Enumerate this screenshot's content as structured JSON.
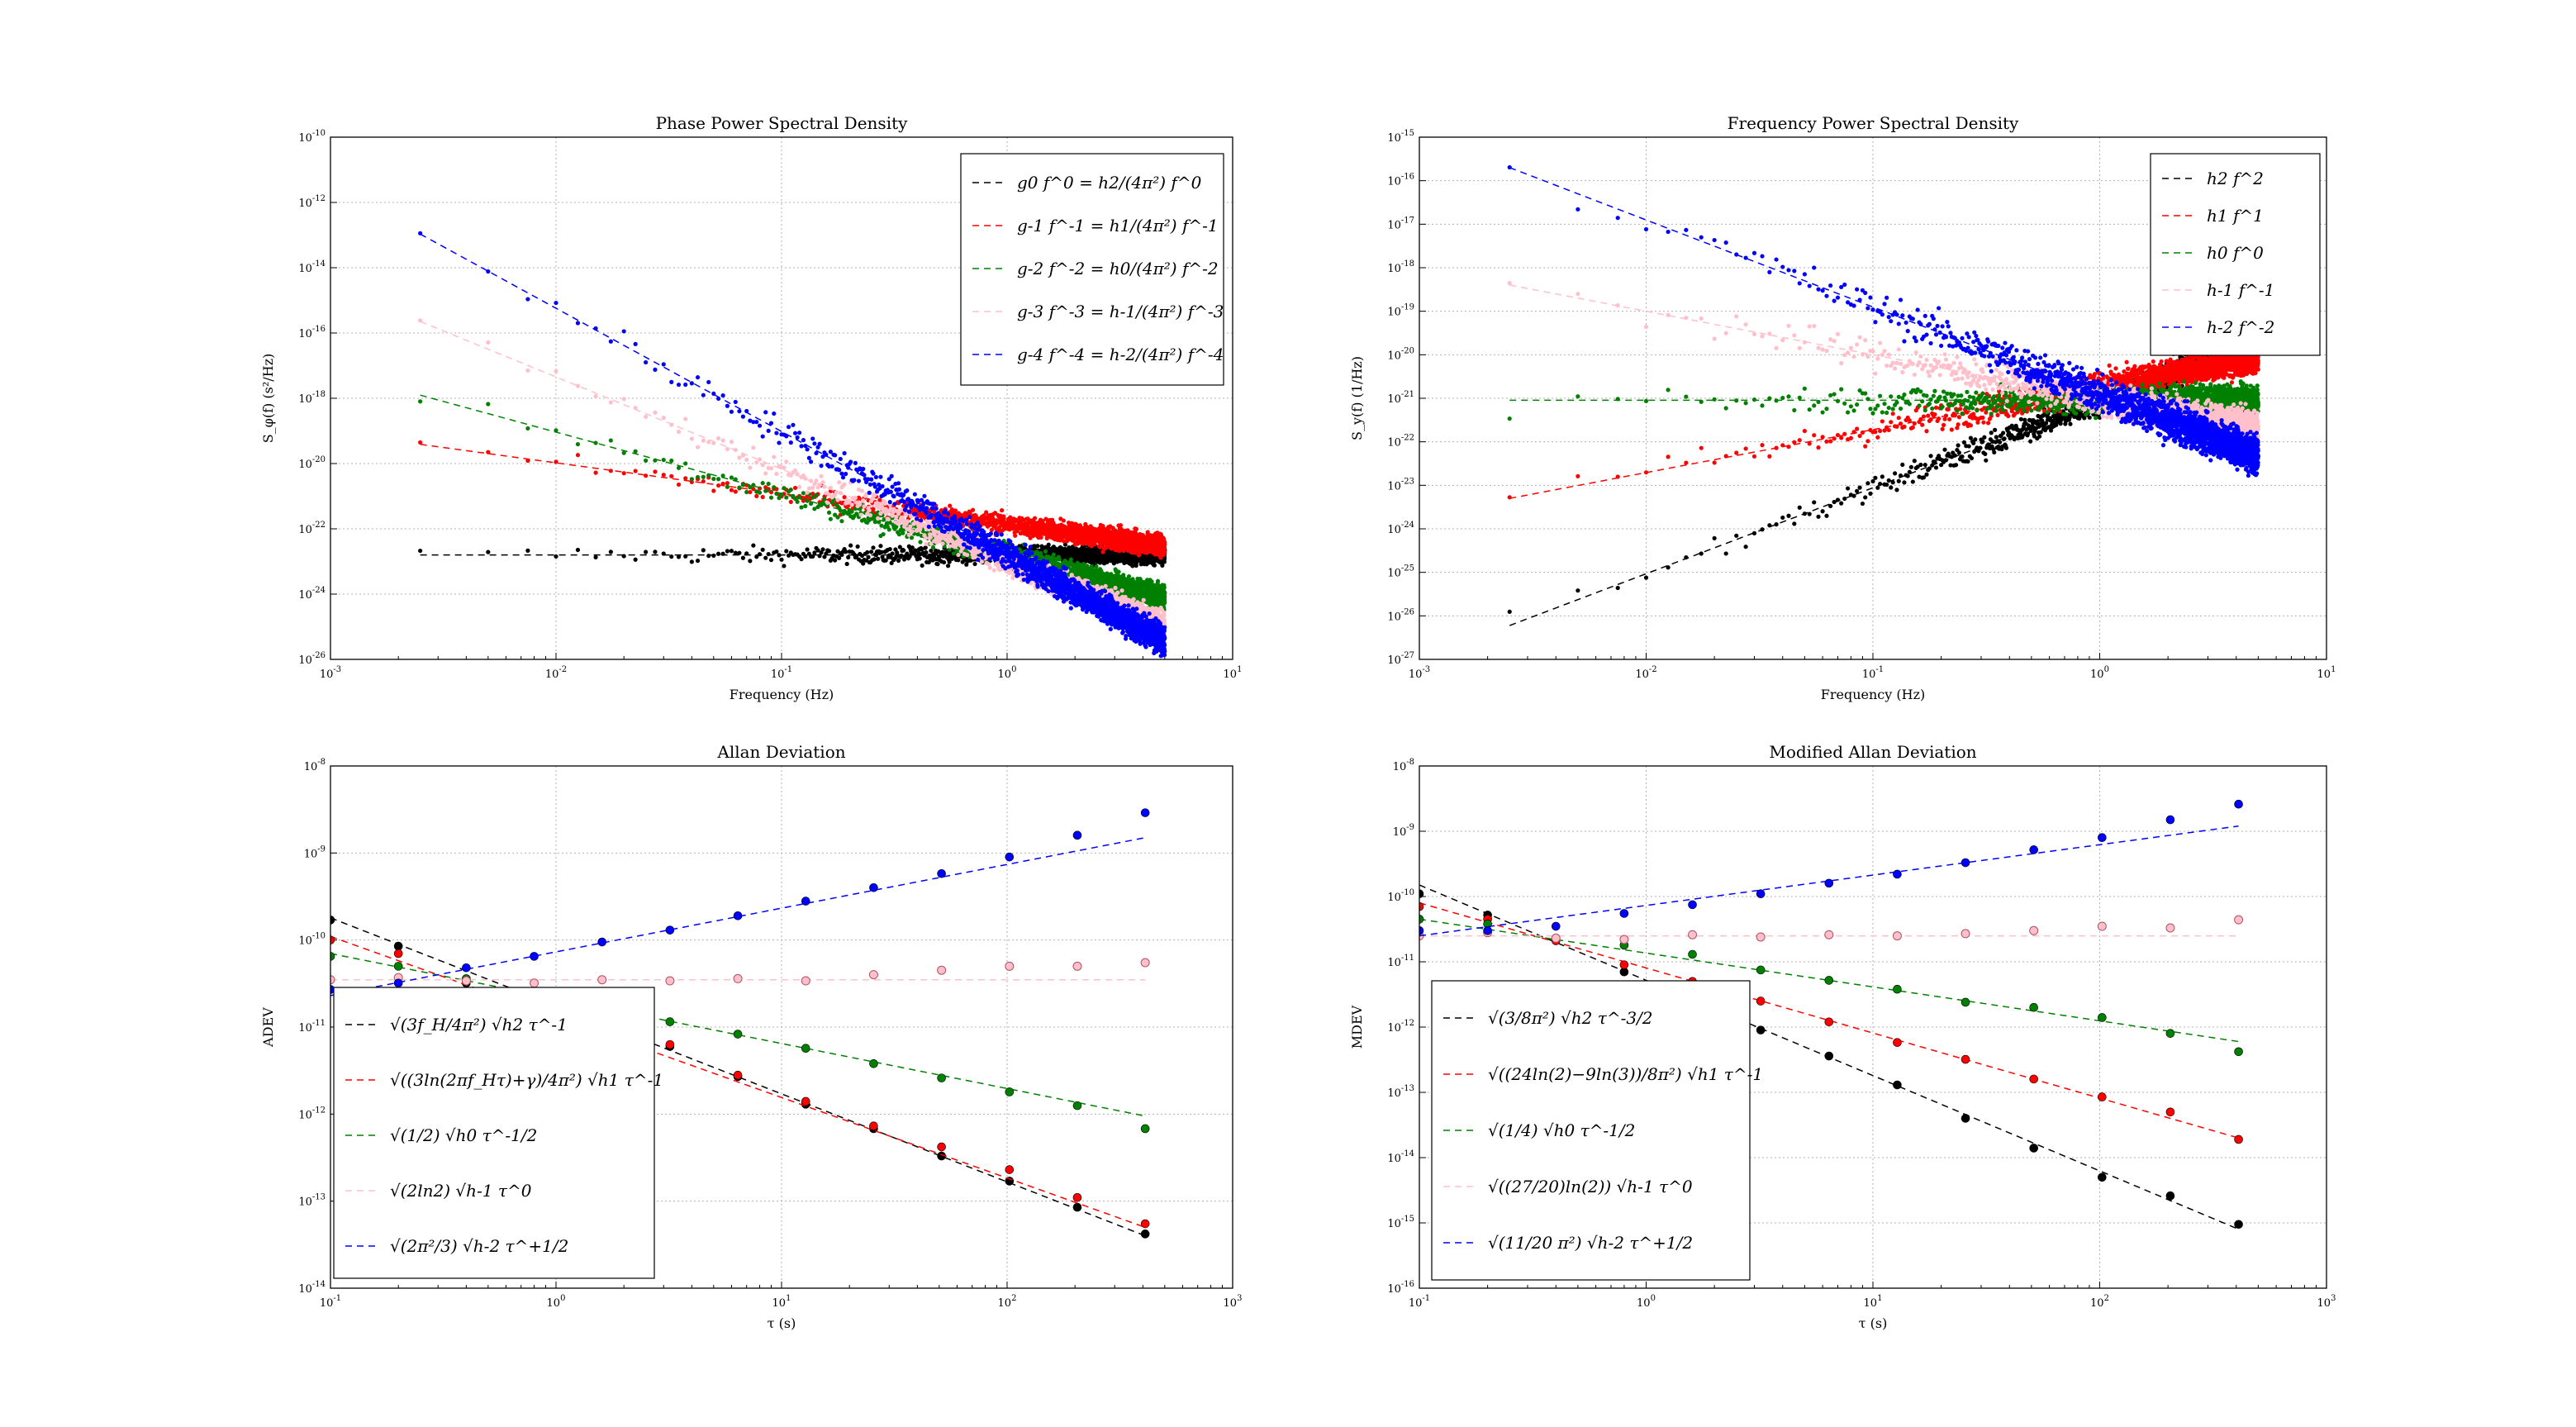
{
  "chart_data": [
    {
      "type": "scatter",
      "id": "phase",
      "title": "Phase Power Spectral Density",
      "xlabel": "Frequency (Hz)",
      "ylabel": "S_φ(f) (s²/Hz)",
      "xscale": "log",
      "yscale": "log",
      "xlim": [
        0.001,
        10
      ],
      "ylim": [
        1e-26,
        1e-09
      ],
      "x_ticks": [
        "10^-3",
        "10^-2",
        "10^-1",
        "10^0",
        "10^1"
      ],
      "y_ticks": [
        "10^-26",
        "10^-24",
        "10^-22",
        "10^-20",
        "10^-18",
        "10^-16",
        "10^-14",
        "10^-12",
        "10^-10"
      ],
      "grid": true,
      "legend_position": "top-right",
      "series": [
        {
          "name": "g0 f^0 = h2/(4π²) f^0",
          "color": "#000000",
          "fit": {
            "x": [
              0.0025,
              5
            ],
            "y": [
              2.5e-23,
              2.5e-23
            ]
          },
          "noise_decades": 0.3
        },
        {
          "name": "g-1 f^-1 = h1/(4π²) f^-1",
          "color": "#ff0000",
          "fit": {
            "x": [
              0.0025,
              5
            ],
            "y": [
              1e-19,
              5e-23
            ]
          },
          "noise_decades": 0.35
        },
        {
          "name": "g-2 f^-2 = h0/(4π²) f^-2",
          "color": "#008000",
          "fit": {
            "x": [
              0.0025,
              5
            ],
            "y": [
              4e-18,
              1e-24
            ]
          },
          "noise_decades": 0.4
        },
        {
          "name": "g-3 f^-3 = h-1/(4π²) f^-3",
          "color": "#ffc0cb",
          "fit": {
            "x": [
              0.0025,
              5
            ],
            "y": [
              1e-15,
              1.25e-25
            ]
          },
          "noise_decades": 0.45
        },
        {
          "name": "g-4 f^-4 = h-2/(4π²) f^-4",
          "color": "#0000ff",
          "fit": {
            "x": [
              0.0025,
              5
            ],
            "y": [
              7e-13,
              4e-26
            ]
          },
          "noise_decades": 0.5
        }
      ]
    },
    {
      "type": "scatter",
      "id": "freq",
      "title": "Frequency Power Spectral Density",
      "xlabel": "Frequency (Hz)",
      "ylabel": "S_y(f) (1/Hz)",
      "xscale": "log",
      "yscale": "log",
      "xlim": [
        0.001,
        10
      ],
      "ylim": [
        1e-27,
        1e-15
      ],
      "x_ticks": [
        "10^-3",
        "10^-2",
        "10^-1",
        "10^0",
        "10^1"
      ],
      "y_ticks": [
        "10^-27",
        "10^-26",
        "10^-25",
        "10^-24",
        "10^-23",
        "10^-22",
        "10^-21",
        "10^-20",
        "10^-19",
        "10^-18",
        "10^-17",
        "10^-16",
        "10^-15"
      ],
      "grid": true,
      "legend_position": "top-right",
      "series": [
        {
          "name": "h2 f^2",
          "color": "#000000",
          "fit": {
            "x": [
              0.0025,
              5
            ],
            "y": [
              6e-27,
              2e-20
            ]
          },
          "noise_decades": 0.3
        },
        {
          "name": "h1 f^1",
          "color": "#ff0000",
          "fit": {
            "x": [
              0.0025,
              5
            ],
            "y": [
              5e-24,
              9e-21
            ]
          },
          "noise_decades": 0.35
        },
        {
          "name": "h0 f^0",
          "color": "#008000",
          "fit": {
            "x": [
              0.0025,
              5
            ],
            "y": [
              9e-22,
              9e-22
            ]
          },
          "noise_decades": 0.35
        },
        {
          "name": "h-1 f^-1",
          "color": "#ffc0cb",
          "fit": {
            "x": [
              0.0025,
              5
            ],
            "y": [
              4e-19,
              2e-22
            ]
          },
          "noise_decades": 0.4
        },
        {
          "name": "h-2 f^-2",
          "color": "#0000ff",
          "fit": {
            "x": [
              0.0025,
              5
            ],
            "y": [
              2e-16,
              5e-23
            ]
          },
          "noise_decades": 0.45
        }
      ]
    },
    {
      "type": "line",
      "id": "adev",
      "title": "Allan Deviation",
      "xlabel": "τ (s)",
      "ylabel": "ADEV",
      "xscale": "log",
      "yscale": "log",
      "xlim": [
        0.1,
        1000
      ],
      "ylim": [
        1e-14,
        1e-08
      ],
      "x_ticks": [
        "10^-1",
        "10^0",
        "10^1",
        "10^2",
        "10^3"
      ],
      "y_ticks": [
        "10^-14",
        "10^-13",
        "10^-12",
        "10^-11",
        "10^-10",
        "10^-9",
        "10^-8"
      ],
      "grid": true,
      "legend_position": "bottom-left",
      "tau": [
        0.1,
        0.2,
        0.4,
        0.8,
        1.6,
        3.2,
        6.4,
        12.8,
        25.6,
        51.2,
        102.4,
        204.8,
        409.6
      ],
      "series": [
        {
          "name": "√(3f_H/4π²) √h2 τ^-1",
          "color": "#000000",
          "fit": [
            1.8e-10,
            4e-14
          ],
          "points": [
            1.7e-10,
            8.5e-11,
            3.2e-11,
            2.2e-11,
            1.3e-11,
            6e-12,
            2.7e-12,
            1.3e-12,
            6.8e-13,
            3.3e-13,
            1.7e-13,
            8.5e-14,
            4.2e-14
          ],
          "hollow": false
        },
        {
          "name": "√((3ln(2πf_Hτ)+γ)/4π²) √h1 τ^-1",
          "color": "#ff0000",
          "fit": [
            1.1e-10,
            5e-14
          ],
          "points": [
            1e-10,
            7e-11,
            3.5e-11,
            2.4e-11,
            1.4e-11,
            6.3e-12,
            2.8e-12,
            1.4e-12,
            7.3e-13,
            4.2e-13,
            2.3e-13,
            1.1e-13,
            5.5e-14
          ],
          "hollow": false
        },
        {
          "name": "√(1/2) √h0 τ^-1/2",
          "color": "#008000",
          "fit": [
            7e-11,
            9.5e-13
          ],
          "points": [
            6.5e-11,
            5e-11,
            3.6e-11,
            2.6e-11,
            1.7e-11,
            1.15e-11,
            8.3e-12,
            5.7e-12,
            3.8e-12,
            2.6e-12,
            1.8e-12,
            1.25e-12,
            6.8e-13
          ],
          "hollow": false
        },
        {
          "name": "√(2ln2) √h-1 τ^0",
          "color": "#ffc0cb",
          "fit": [
            3.5e-11,
            3.5e-11
          ],
          "points": [
            3.5e-11,
            3.7e-11,
            3.4e-11,
            3.2e-11,
            3.5e-11,
            3.4e-11,
            3.6e-11,
            3.4e-11,
            4e-11,
            4.5e-11,
            5e-11,
            5e-11,
            5.5e-11
          ],
          "hollow": true
        },
        {
          "name": "√(2π²/3) √h-2 τ^+1/2",
          "color": "#0000ff",
          "fit": [
            2.3e-11,
            1.5e-09
          ],
          "points": [
            2.7e-11,
            3.2e-11,
            4.8e-11,
            6.5e-11,
            9.5e-11,
            1.3e-10,
            1.9e-10,
            2.8e-10,
            4e-10,
            5.8e-10,
            9e-10,
            1.6e-09,
            2.9e-09
          ],
          "hollow": false
        }
      ]
    },
    {
      "type": "line",
      "id": "mdev",
      "title": "Modified Allan Deviation",
      "xlabel": "τ (s)",
      "ylabel": "MDEV",
      "xscale": "log",
      "yscale": "log",
      "xlim": [
        0.1,
        1000
      ],
      "ylim": [
        1e-16,
        1e-08
      ],
      "x_ticks": [
        "10^-1",
        "10^0",
        "10^1",
        "10^2",
        "10^3"
      ],
      "y_ticks": [
        "10^-16",
        "10^-15",
        "10^-14",
        "10^-13",
        "10^-12",
        "10^-11",
        "10^-10",
        "10^-9",
        "10^-8"
      ],
      "grid": true,
      "legend_position": "bottom-left",
      "tau": [
        0.1,
        0.2,
        0.4,
        0.8,
        1.6,
        3.2,
        6.4,
        12.8,
        25.6,
        51.2,
        102.4,
        204.8,
        409.6
      ],
      "series": [
        {
          "name": "√(3/8π²) √h2 τ^-3/2",
          "color": "#000000",
          "fit": [
            1.5e-10,
            8e-16
          ],
          "points": [
            1.1e-10,
            5.2e-11,
            2.3e-11,
            7e-12,
            2.3e-12,
            9e-13,
            3.6e-13,
            1.3e-13,
            4e-14,
            1.4e-14,
            5e-15,
            2.6e-15,
            9.5e-16
          ],
          "hollow": false
        },
        {
          "name": "√((24ln(2)−9ln(3))/8π²) √h1 τ^-1",
          "color": "#ff0000",
          "fit": [
            8e-11,
            2e-14
          ],
          "points": [
            7e-11,
            4.5e-11,
            2.1e-11,
            9e-12,
            5e-12,
            2.5e-12,
            1.2e-12,
            5.8e-13,
            3.2e-13,
            1.6e-13,
            8.5e-14,
            5e-14,
            1.9e-14
          ],
          "hollow": false
        },
        {
          "name": "√(1/4) √h0 τ^-1/2",
          "color": "#008000",
          "fit": [
            4.5e-11,
            6e-13
          ],
          "points": [
            4.5e-11,
            3.8e-11,
            2.3e-11,
            1.8e-11,
            1.3e-11,
            7.5e-12,
            5.2e-12,
            3.8e-12,
            2.4e-12,
            2e-12,
            1.4e-12,
            8e-13,
            4.2e-13
          ],
          "hollow": false
        },
        {
          "name": "√((27/20)ln(2)) √h-1 τ^0",
          "color": "#ffc0cb",
          "fit": [
            2.5e-11,
            2.5e-11
          ],
          "points": [
            2.5e-11,
            2.8e-11,
            2.3e-11,
            2.2e-11,
            2.6e-11,
            2.4e-11,
            2.6e-11,
            2.5e-11,
            2.7e-11,
            3e-11,
            3.5e-11,
            3.3e-11,
            4.4e-11
          ],
          "hollow": true
        },
        {
          "name": "√(11/20 π²) √h-2 τ^+1/2",
          "color": "#0000ff",
          "fit": [
            2.5e-11,
            1.2e-09
          ],
          "points": [
            3e-11,
            3e-11,
            3.5e-11,
            5.5e-11,
            7.5e-11,
            1.1e-10,
            1.6e-10,
            2.2e-10,
            3.3e-10,
            5.2e-10,
            8e-10,
            1.5e-09,
            2.6e-09
          ],
          "hollow": false
        }
      ]
    }
  ]
}
